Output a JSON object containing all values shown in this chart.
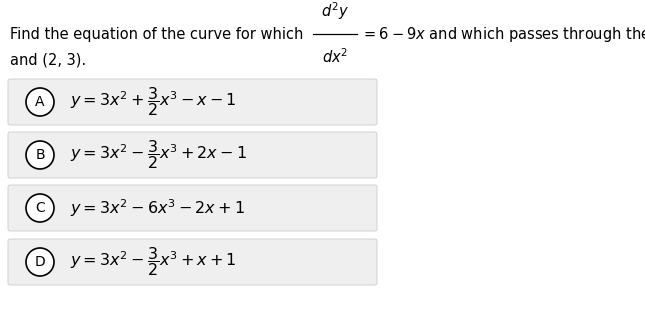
{
  "background_color": "#ffffff",
  "text_color": "#000000",
  "option_bg_color": "#efefef",
  "option_border_color": "#cccccc",
  "options": [
    {
      "label": "A",
      "formula": "$y=3x^2+\\dfrac{3}{2}x^3-x-1$"
    },
    {
      "label": "B",
      "formula": "$y=3x^2-\\dfrac{3}{2}x^3+2x-1$"
    },
    {
      "label": "C",
      "formula": "$y=3x^2-6x^3-2x+1$"
    },
    {
      "label": "D",
      "formula": "$y=3x^2-\\dfrac{3}{2}x^3+x+1$"
    }
  ],
  "font_size_question": 10.5,
  "font_size_option": 11.5,
  "font_size_label": 10,
  "fig_width": 6.45,
  "fig_height": 3.3,
  "dpi": 100
}
